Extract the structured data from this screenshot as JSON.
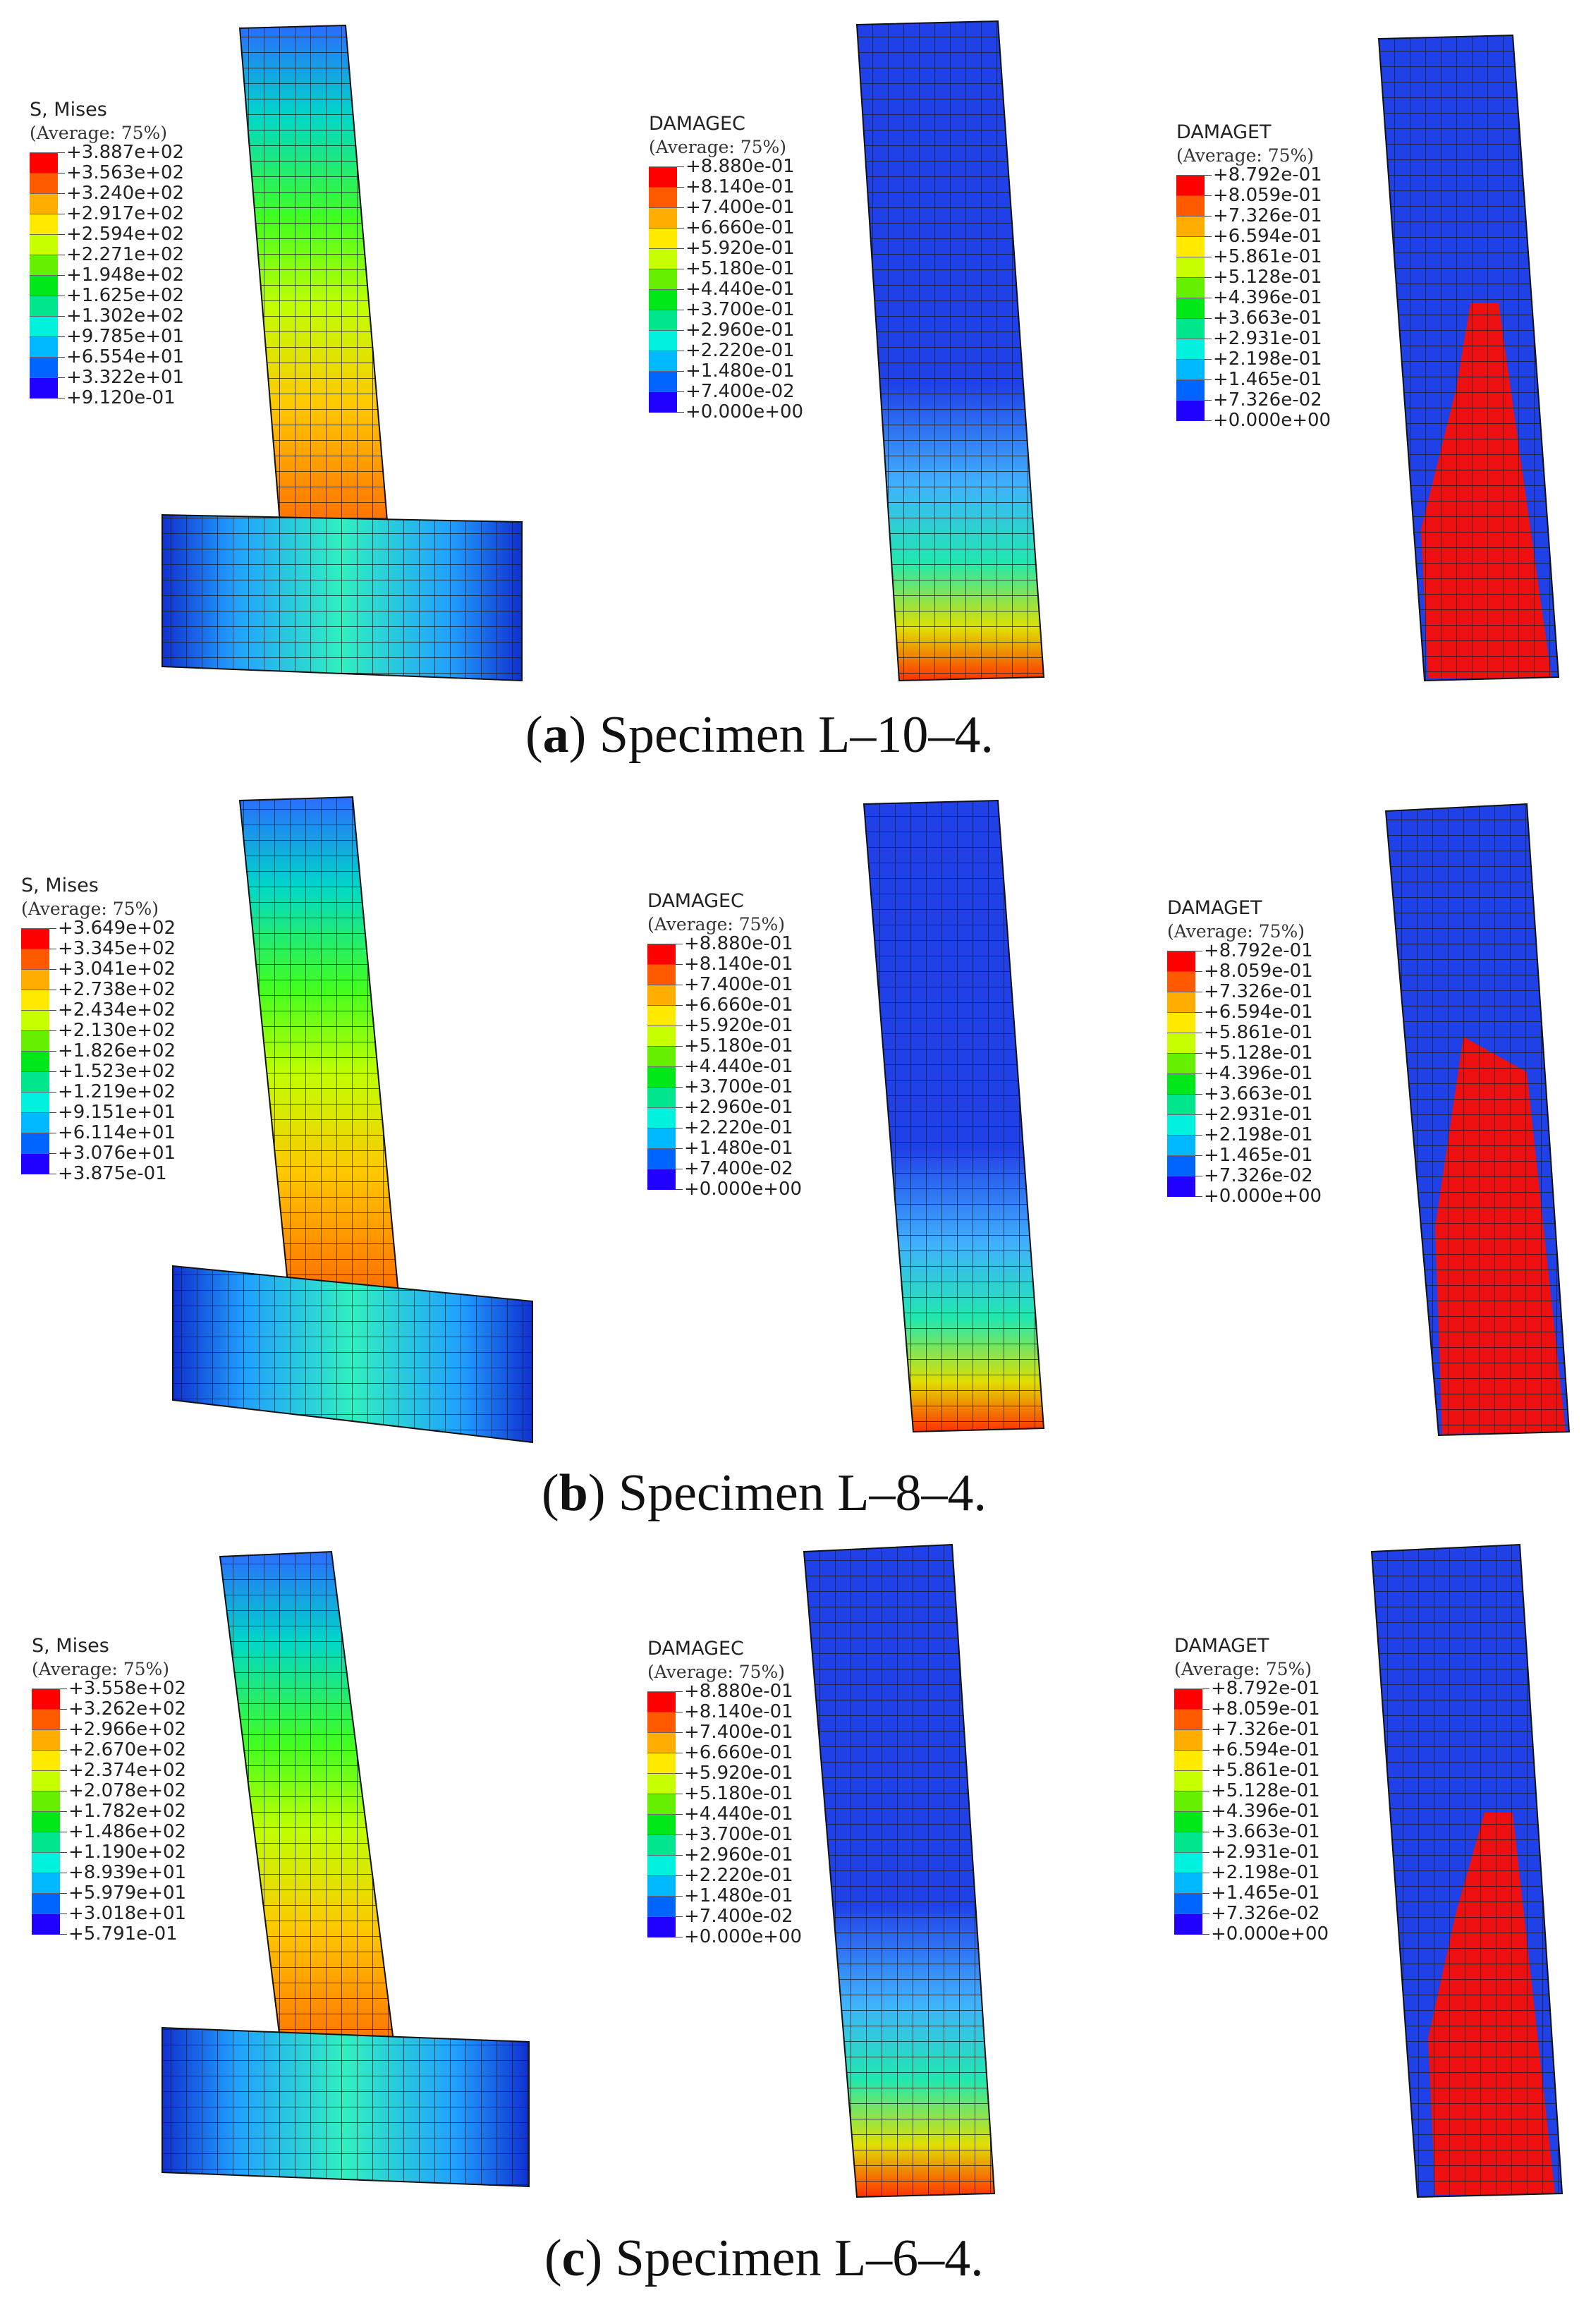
{
  "colors": [
    "#ff0000",
    "#ff5a00",
    "#ffae00",
    "#ffea00",
    "#c8ff00",
    "#66f000",
    "#00e81a",
    "#00e68c",
    "#00f2df",
    "#00b8ff",
    "#0064ff",
    "#2000ff"
  ],
  "panels": [
    {
      "caption_letter": "a",
      "caption_text": "Specimen L–10–4.",
      "legends": [
        {
          "title": "S, Mises",
          "sub": "(Average: 75%)",
          "values": [
            "+3.887e+02",
            "+3.563e+02",
            "+3.240e+02",
            "+2.917e+02",
            "+2.594e+02",
            "+2.271e+02",
            "+1.948e+02",
            "+1.625e+02",
            "+1.302e+02",
            "+9.785e+01",
            "+6.554e+01",
            "+3.322e+01",
            "+9.120e-01"
          ]
        },
        {
          "title": "DAMAGEC",
          "sub": "(Average: 75%)",
          "values": [
            "+8.880e-01",
            "+8.140e-01",
            "+7.400e-01",
            "+6.660e-01",
            "+5.920e-01",
            "+5.180e-01",
            "+4.440e-01",
            "+3.700e-01",
            "+2.960e-01",
            "+2.220e-01",
            "+1.480e-01",
            "+7.400e-02",
            "+0.000e+00"
          ]
        },
        {
          "title": "DAMAGET",
          "sub": "(Average: 75%)",
          "values": [
            "+8.792e-01",
            "+8.059e-01",
            "+7.326e-01",
            "+6.594e-01",
            "+5.861e-01",
            "+5.128e-01",
            "+4.396e-01",
            "+3.663e-01",
            "+2.931e-01",
            "+2.198e-01",
            "+1.465e-01",
            "+7.326e-02",
            "+0.000e+00"
          ]
        }
      ]
    },
    {
      "caption_letter": "b",
      "caption_text": "Specimen L–8–4.",
      "legends": [
        {
          "title": "S, Mises",
          "sub": "(Average: 75%)",
          "values": [
            "+3.649e+02",
            "+3.345e+02",
            "+3.041e+02",
            "+2.738e+02",
            "+2.434e+02",
            "+2.130e+02",
            "+1.826e+02",
            "+1.523e+02",
            "+1.219e+02",
            "+9.151e+01",
            "+6.114e+01",
            "+3.076e+01",
            "+3.875e-01"
          ]
        },
        {
          "title": "DAMAGEC",
          "sub": "(Average: 75%)",
          "values": [
            "+8.880e-01",
            "+8.140e-01",
            "+7.400e-01",
            "+6.660e-01",
            "+5.920e-01",
            "+5.180e-01",
            "+4.440e-01",
            "+3.700e-01",
            "+2.960e-01",
            "+2.220e-01",
            "+1.480e-01",
            "+7.400e-02",
            "+0.000e+00"
          ]
        },
        {
          "title": "DAMAGET",
          "sub": "(Average: 75%)",
          "values": [
            "+8.792e-01",
            "+8.059e-01",
            "+7.326e-01",
            "+6.594e-01",
            "+5.861e-01",
            "+5.128e-01",
            "+4.396e-01",
            "+3.663e-01",
            "+2.931e-01",
            "+2.198e-01",
            "+1.465e-01",
            "+7.326e-02",
            "+0.000e+00"
          ]
        }
      ]
    },
    {
      "caption_letter": "c",
      "caption_text": "Specimen L–6–4.",
      "legends": [
        {
          "title": "S, Mises",
          "sub": "(Average: 75%)",
          "values": [
            "+3.558e+02",
            "+3.262e+02",
            "+2.966e+02",
            "+2.670e+02",
            "+2.374e+02",
            "+2.078e+02",
            "+1.782e+02",
            "+1.486e+02",
            "+1.190e+02",
            "+8.939e+01",
            "+5.979e+01",
            "+3.018e+01",
            "+5.791e-01"
          ]
        },
        {
          "title": "DAMAGEC",
          "sub": "(Average: 75%)",
          "values": [
            "+8.880e-01",
            "+8.140e-01",
            "+7.400e-01",
            "+6.660e-01",
            "+5.920e-01",
            "+5.180e-01",
            "+4.440e-01",
            "+3.700e-01",
            "+2.960e-01",
            "+2.220e-01",
            "+1.480e-01",
            "+7.400e-02",
            "+0.000e+00"
          ]
        },
        {
          "title": "DAMAGET",
          "sub": "(Average: 75%)",
          "values": [
            "+8.792e-01",
            "+8.059e-01",
            "+7.326e-01",
            "+6.594e-01",
            "+5.861e-01",
            "+5.128e-01",
            "+4.396e-01",
            "+3.663e-01",
            "+2.931e-01",
            "+2.198e-01",
            "+1.465e-01",
            "+7.326e-02",
            "+0.000e+00"
          ]
        }
      ]
    }
  ]
}
